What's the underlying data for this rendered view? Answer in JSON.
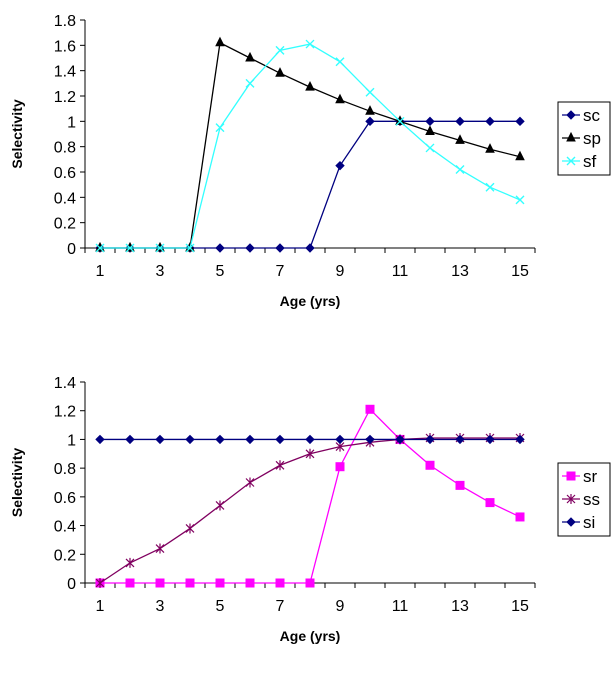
{
  "chart_data": [
    {
      "type": "line",
      "xlabel": "Age (yrs)",
      "ylabel": "Selectivity",
      "ylim": [
        0,
        1.8
      ],
      "yticks": [
        "0",
        "0.2",
        "0.4",
        "0.6",
        "0.8",
        "1",
        "1.2",
        "1.4",
        "1.6",
        "1.8"
      ],
      "xticks": [
        "1",
        "3",
        "5",
        "7",
        "9",
        "11",
        "13",
        "15"
      ],
      "x": [
        1,
        2,
        3,
        4,
        5,
        6,
        7,
        8,
        9,
        10,
        11,
        12,
        13,
        14,
        15
      ],
      "grid": false,
      "legend_position": "right",
      "series": [
        {
          "name": "sc",
          "color": "#000080",
          "marker": "diamond",
          "values": [
            0,
            0,
            0,
            0,
            0,
            0,
            0,
            0,
            0.65,
            1,
            1,
            1,
            1,
            1,
            1
          ]
        },
        {
          "name": "sp",
          "color": "#000000",
          "marker": "triangle",
          "values": [
            0,
            0,
            0,
            0,
            1.62,
            1.5,
            1.38,
            1.27,
            1.17,
            1.08,
            1.0,
            0.92,
            0.85,
            0.78,
            0.72
          ]
        },
        {
          "name": "sf",
          "color": "#33ffff",
          "marker": "x",
          "values": [
            0,
            0,
            0,
            0,
            0.95,
            1.3,
            1.56,
            1.61,
            1.47,
            1.23,
            1.0,
            0.79,
            0.62,
            0.48,
            0.38
          ]
        }
      ]
    },
    {
      "type": "line",
      "xlabel": "Age (yrs)",
      "ylabel": "Selectivity",
      "ylim": [
        0,
        1.4
      ],
      "yticks": [
        "0",
        "0.2",
        "0.4",
        "0.6",
        "0.8",
        "1",
        "1.2",
        "1.4"
      ],
      "xticks": [
        "1",
        "3",
        "5",
        "7",
        "9",
        "11",
        "13",
        "15"
      ],
      "x": [
        1,
        2,
        3,
        4,
        5,
        6,
        7,
        8,
        9,
        10,
        11,
        12,
        13,
        14,
        15
      ],
      "grid": false,
      "legend_position": "right",
      "series": [
        {
          "name": "sr",
          "color": "#ff00ff",
          "marker": "square",
          "values": [
            0,
            0,
            0,
            0,
            0,
            0,
            0,
            0,
            0.81,
            1.21,
            1.0,
            0.82,
            0.68,
            0.56,
            0.46
          ]
        },
        {
          "name": "ss",
          "color": "#800060",
          "marker": "star",
          "values": [
            0,
            0.14,
            0.24,
            0.38,
            0.54,
            0.7,
            0.82,
            0.9,
            0.95,
            0.98,
            1.0,
            1.01,
            1.01,
            1.01,
            1.01
          ]
        },
        {
          "name": "si",
          "color": "#000080",
          "marker": "diamond",
          "values": [
            1,
            1,
            1,
            1,
            1,
            1,
            1,
            1,
            1,
            1,
            1,
            1,
            1,
            1,
            1
          ]
        }
      ]
    }
  ]
}
